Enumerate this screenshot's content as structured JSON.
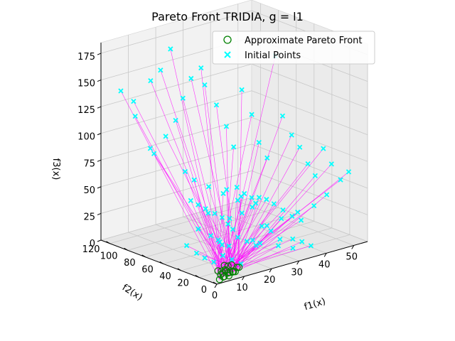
{
  "chart_data": {
    "type": "scatter3d",
    "title": "Pareto Front TRIDIA, g = l1",
    "xlabel": "f1(x)",
    "ylabel": "f2(x)",
    "zlabel": "f3(x)",
    "xlim": [
      0,
      55
    ],
    "ylim": [
      0,
      130
    ],
    "zlim": [
      0,
      185
    ],
    "xticks": [
      "0",
      "10",
      "20",
      "30",
      "40",
      "50"
    ],
    "yticks": [
      "0",
      "20",
      "40",
      "60",
      "80",
      "100",
      "120"
    ],
    "zticks": [
      "0",
      "25",
      "50",
      "75",
      "100",
      "125",
      "150",
      "175"
    ],
    "grid": true,
    "legend_position": "upper-right",
    "legend": [
      {
        "label": "Approximate Pareto Front",
        "marker": "circle-open",
        "color": "#008000"
      },
      {
        "label": "Initial Points",
        "marker": "x",
        "color": "#00ffff"
      }
    ],
    "connector_color": "#ff00ff",
    "series": [
      {
        "name": "Approximate Pareto Front",
        "points": [
          [
            2,
            3,
            2
          ],
          [
            3,
            2,
            4
          ],
          [
            4,
            4,
            3
          ],
          [
            5,
            3,
            6
          ],
          [
            6,
            5,
            2
          ],
          [
            3,
            5,
            5
          ],
          [
            7,
            4,
            5
          ],
          [
            5,
            6,
            8
          ],
          [
            8,
            6,
            4
          ],
          [
            4,
            7,
            7
          ],
          [
            6,
            8,
            6
          ],
          [
            9,
            7,
            3
          ],
          [
            5,
            9,
            4
          ],
          [
            7,
            9,
            9
          ],
          [
            10,
            8,
            6
          ],
          [
            8,
            10,
            2
          ],
          [
            6,
            10,
            10
          ],
          [
            11,
            9,
            5
          ],
          [
            4,
            11,
            6
          ],
          [
            9,
            11,
            8
          ]
        ]
      },
      {
        "name": "Initial Points",
        "points": [
          [
            4,
            120,
            140
          ],
          [
            6,
            110,
            118
          ],
          [
            8,
            118,
            128
          ],
          [
            10,
            105,
            150
          ],
          [
            12,
            100,
            160
          ],
          [
            14,
            95,
            180
          ],
          [
            5,
            90,
            95
          ],
          [
            7,
            92,
            88
          ],
          [
            9,
            85,
            105
          ],
          [
            11,
            80,
            120
          ],
          [
            13,
            78,
            140
          ],
          [
            15,
            75,
            158
          ],
          [
            17,
            70,
            168
          ],
          [
            19,
            72,
            150
          ],
          [
            21,
            65,
            132
          ],
          [
            23,
            60,
            112
          ],
          [
            25,
            58,
            92
          ],
          [
            27,
            55,
            145
          ],
          [
            29,
            50,
            122
          ],
          [
            31,
            48,
            95
          ],
          [
            33,
            45,
            80
          ],
          [
            35,
            42,
            175
          ],
          [
            37,
            40,
            118
          ],
          [
            39,
            36,
            100
          ],
          [
            41,
            33,
            88
          ],
          [
            43,
            30,
            72
          ],
          [
            45,
            28,
            60
          ],
          [
            47,
            25,
            85
          ],
          [
            49,
            22,
            70
          ],
          [
            51,
            18,
            55
          ],
          [
            53,
            15,
            62
          ],
          [
            44,
            12,
            48
          ],
          [
            40,
            14,
            40
          ],
          [
            36,
            20,
            35
          ],
          [
            32,
            26,
            30
          ],
          [
            28,
            30,
            25
          ],
          [
            24,
            34,
            44
          ],
          [
            20,
            38,
            52
          ],
          [
            16,
            42,
            60
          ],
          [
            12,
            46,
            68
          ],
          [
            8,
            50,
            76
          ],
          [
            6,
            54,
            84
          ],
          [
            10,
            60,
            52
          ],
          [
            14,
            64,
            44
          ],
          [
            18,
            68,
            36
          ],
          [
            22,
            70,
            28
          ],
          [
            26,
            74,
            20
          ],
          [
            30,
            78,
            15
          ],
          [
            34,
            82,
            40
          ],
          [
            38,
            86,
            30
          ],
          [
            42,
            90,
            22
          ],
          [
            46,
            94,
            18
          ],
          [
            50,
            98,
            12
          ],
          [
            48,
            104,
            8
          ],
          [
            44,
            108,
            16
          ],
          [
            40,
            112,
            24
          ],
          [
            3,
            30,
            40
          ],
          [
            5,
            25,
            55
          ],
          [
            7,
            20,
            30
          ],
          [
            9,
            15,
            45
          ],
          [
            11,
            28,
            20
          ],
          [
            13,
            22,
            35
          ],
          [
            15,
            18,
            50
          ],
          [
            17,
            12,
            25
          ],
          [
            19,
            8,
            38
          ],
          [
            21,
            16,
            18
          ],
          [
            23,
            10,
            30
          ],
          [
            25,
            6,
            22
          ],
          [
            27,
            14,
            12
          ],
          [
            29,
            4,
            20
          ],
          [
            31,
            10,
            8
          ],
          [
            33,
            6,
            14
          ],
          [
            35,
            2,
            10
          ],
          [
            2,
            40,
            22
          ],
          [
            4,
            35,
            15
          ],
          [
            6,
            32,
            10
          ],
          [
            8,
            28,
            6
          ],
          [
            10,
            24,
            12
          ],
          [
            12,
            20,
            8
          ],
          [
            14,
            16,
            4
          ],
          [
            16,
            56,
            16
          ],
          [
            18,
            52,
            10
          ],
          [
            20,
            48,
            6
          ],
          [
            22,
            44,
            14
          ],
          [
            24,
            40,
            10
          ],
          [
            26,
            36,
            6
          ],
          [
            28,
            22,
            48
          ],
          [
            30,
            18,
            42
          ],
          [
            32,
            14,
            36
          ],
          [
            34,
            10,
            32
          ]
        ]
      }
    ]
  }
}
